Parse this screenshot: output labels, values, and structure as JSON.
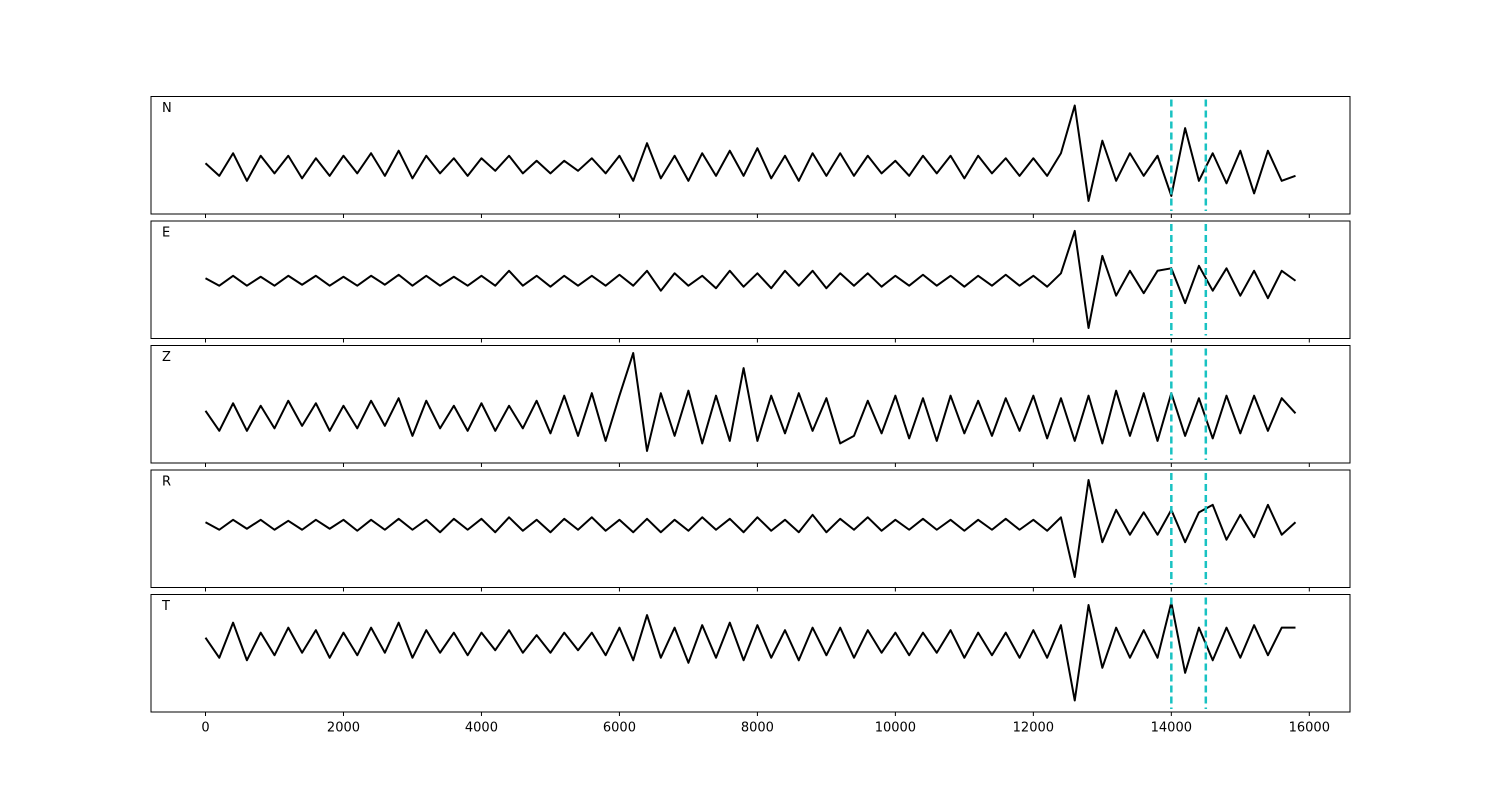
{
  "chart_data": {
    "type": "line",
    "x": [
      0,
      200,
      400,
      600,
      800,
      1000,
      1200,
      1400,
      1600,
      1800,
      2000,
      2200,
      2400,
      2600,
      2800,
      3000,
      3200,
      3400,
      3600,
      3800,
      4000,
      4200,
      4400,
      4600,
      4800,
      5000,
      5200,
      5400,
      5600,
      5800,
      6000,
      6200,
      6400,
      6600,
      6800,
      7000,
      7200,
      7400,
      7600,
      7800,
      8000,
      8200,
      8400,
      8600,
      8800,
      9000,
      9200,
      9400,
      9600,
      9800,
      10000,
      10200,
      10400,
      10600,
      10800,
      11000,
      11200,
      11400,
      11600,
      11800,
      12000,
      12200,
      12400,
      12600,
      12800,
      13000,
      13200,
      13400,
      13600,
      13800,
      14000,
      14200,
      14400,
      14600,
      14800,
      15000,
      15200,
      15400,
      15600,
      15800
    ],
    "xlim": [
      -790,
      16590
    ],
    "xticks": [
      0,
      2000,
      4000,
      6000,
      8000,
      10000,
      12000,
      14000,
      16000
    ],
    "vlines": [
      14000,
      14500
    ],
    "vline_color": "#19c2c2",
    "series": [
      {
        "name": "N",
        "color": "#000000",
        "ylim": [
          -0.96,
          1.38
        ],
        "values": [
          0.05,
          -0.2,
          0.25,
          -0.3,
          0.2,
          -0.15,
          0.2,
          -0.25,
          0.15,
          -0.2,
          0.2,
          -0.15,
          0.25,
          -0.2,
          0.3,
          -0.25,
          0.2,
          -0.15,
          0.15,
          -0.2,
          0.15,
          -0.1,
          0.2,
          -0.15,
          0.1,
          -0.15,
          0.1,
          -0.1,
          0.15,
          -0.15,
          0.2,
          -0.3,
          0.45,
          -0.25,
          0.2,
          -0.3,
          0.25,
          -0.2,
          0.3,
          -0.2,
          0.35,
          -0.25,
          0.2,
          -0.3,
          0.25,
          -0.2,
          0.25,
          -0.2,
          0.2,
          -0.15,
          0.1,
          -0.2,
          0.2,
          -0.15,
          0.2,
          -0.25,
          0.2,
          -0.15,
          0.15,
          -0.2,
          0.15,
          -0.2,
          0.25,
          1.2,
          -0.7,
          0.5,
          -0.3,
          0.25,
          -0.2,
          0.2,
          -0.6,
          0.75,
          -0.3,
          0.25,
          -0.35,
          0.3,
          -0.55,
          0.3,
          -0.3,
          -0.2
        ]
      },
      {
        "name": "E",
        "color": "#000000",
        "ylim": [
          -1.16,
          1.2
        ],
        "values": [
          0.05,
          -0.1,
          0.1,
          -0.1,
          0.08,
          -0.1,
          0.1,
          -0.08,
          0.1,
          -0.1,
          0.08,
          -0.1,
          0.1,
          -0.08,
          0.12,
          -0.1,
          0.1,
          -0.1,
          0.08,
          -0.1,
          0.1,
          -0.1,
          0.2,
          -0.1,
          0.1,
          -0.12,
          0.1,
          -0.1,
          0.1,
          -0.1,
          0.12,
          -0.1,
          0.2,
          -0.2,
          0.15,
          -0.1,
          0.1,
          -0.15,
          0.2,
          -0.12,
          0.15,
          -0.15,
          0.2,
          -0.1,
          0.2,
          -0.15,
          0.15,
          -0.1,
          0.15,
          -0.12,
          0.1,
          -0.1,
          0.12,
          -0.1,
          0.1,
          -0.12,
          0.1,
          -0.1,
          0.12,
          -0.1,
          0.1,
          -0.12,
          0.15,
          1.0,
          -0.95,
          0.5,
          -0.3,
          0.2,
          -0.25,
          0.2,
          0.25,
          -0.45,
          0.3,
          -0.2,
          0.25,
          -0.3,
          0.2,
          -0.35,
          0.2,
          0.0
        ]
      },
      {
        "name": "Z",
        "color": "#000000",
        "ylim": [
          -0.94,
          1.4
        ],
        "values": [
          0.1,
          -0.3,
          0.25,
          -0.3,
          0.2,
          -0.25,
          0.3,
          -0.2,
          0.25,
          -0.3,
          0.2,
          -0.25,
          0.3,
          -0.2,
          0.35,
          -0.4,
          0.3,
          -0.25,
          0.2,
          -0.3,
          0.25,
          -0.3,
          0.2,
          -0.25,
          0.3,
          -0.35,
          0.4,
          -0.4,
          0.45,
          -0.5,
          0.4,
          1.25,
          -0.7,
          0.45,
          -0.4,
          0.5,
          -0.55,
          0.4,
          -0.5,
          0.95,
          -0.5,
          0.4,
          -0.35,
          0.45,
          -0.3,
          0.35,
          -0.55,
          -0.4,
          0.3,
          -0.35,
          0.4,
          -0.45,
          0.35,
          -0.5,
          0.4,
          -0.35,
          0.3,
          -0.4,
          0.35,
          -0.3,
          0.4,
          -0.45,
          0.35,
          -0.5,
          0.4,
          -0.55,
          0.5,
          -0.4,
          0.45,
          -0.5,
          0.45,
          -0.4,
          0.35,
          -0.45,
          0.4,
          -0.35,
          0.4,
          -0.3,
          0.35,
          0.05
        ]
      },
      {
        "name": "R",
        "color": "#000000",
        "ylim": [
          -1.26,
          1.1
        ],
        "values": [
          0.05,
          -0.1,
          0.1,
          -0.08,
          0.1,
          -0.1,
          0.08,
          -0.1,
          0.1,
          -0.08,
          0.1,
          -0.12,
          0.1,
          -0.1,
          0.12,
          -0.1,
          0.1,
          -0.15,
          0.12,
          -0.1,
          0.12,
          -0.15,
          0.15,
          -0.12,
          0.1,
          -0.15,
          0.12,
          -0.1,
          0.15,
          -0.12,
          0.1,
          -0.15,
          0.12,
          -0.15,
          0.1,
          -0.12,
          0.15,
          -0.1,
          0.12,
          -0.15,
          0.15,
          -0.12,
          0.1,
          -0.15,
          0.2,
          -0.15,
          0.12,
          -0.1,
          0.15,
          -0.12,
          0.1,
          -0.1,
          0.12,
          -0.1,
          0.1,
          -0.12,
          0.1,
          -0.1,
          0.12,
          -0.1,
          0.1,
          -0.12,
          0.15,
          -1.05,
          0.9,
          -0.35,
          0.3,
          -0.2,
          0.25,
          -0.2,
          0.3,
          -0.35,
          0.25,
          0.4,
          -0.3,
          0.2,
          -0.25,
          0.4,
          -0.2,
          0.05
        ]
      },
      {
        "name": "T",
        "color": "#000000",
        "ylim": [
          -1.38,
          0.96
        ],
        "values": [
          0.1,
          -0.3,
          0.4,
          -0.35,
          0.2,
          -0.25,
          0.3,
          -0.2,
          0.25,
          -0.3,
          0.2,
          -0.25,
          0.3,
          -0.2,
          0.4,
          -0.3,
          0.25,
          -0.2,
          0.2,
          -0.25,
          0.2,
          -0.15,
          0.25,
          -0.2,
          0.15,
          -0.2,
          0.2,
          -0.15,
          0.2,
          -0.25,
          0.3,
          -0.35,
          0.55,
          -0.3,
          0.3,
          -0.4,
          0.35,
          -0.3,
          0.4,
          -0.35,
          0.35,
          -0.3,
          0.25,
          -0.35,
          0.3,
          -0.25,
          0.3,
          -0.3,
          0.25,
          -0.2,
          0.2,
          -0.25,
          0.2,
          -0.2,
          0.25,
          -0.3,
          0.2,
          -0.25,
          0.2,
          -0.3,
          0.25,
          -0.3,
          0.35,
          -1.15,
          0.75,
          -0.5,
          0.3,
          -0.3,
          0.25,
          -0.3,
          0.8,
          -0.6,
          0.3,
          -0.35,
          0.3,
          -0.3,
          0.35,
          -0.25,
          0.3,
          0.3
        ]
      }
    ]
  }
}
